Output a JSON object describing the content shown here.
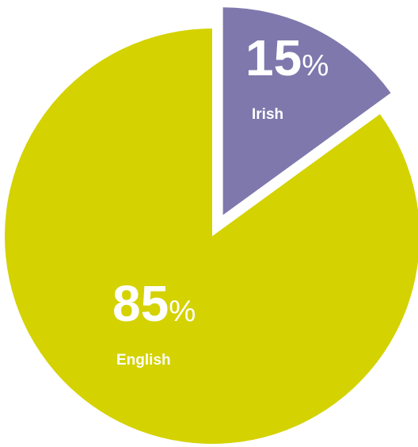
{
  "chart_data": {
    "type": "pie",
    "categories": [
      "Irish",
      "English"
    ],
    "values": [
      15,
      85
    ],
    "value_labels": [
      "15%",
      "85%"
    ],
    "colors": [
      "#7f78ad",
      "#d4d200"
    ]
  }
}
